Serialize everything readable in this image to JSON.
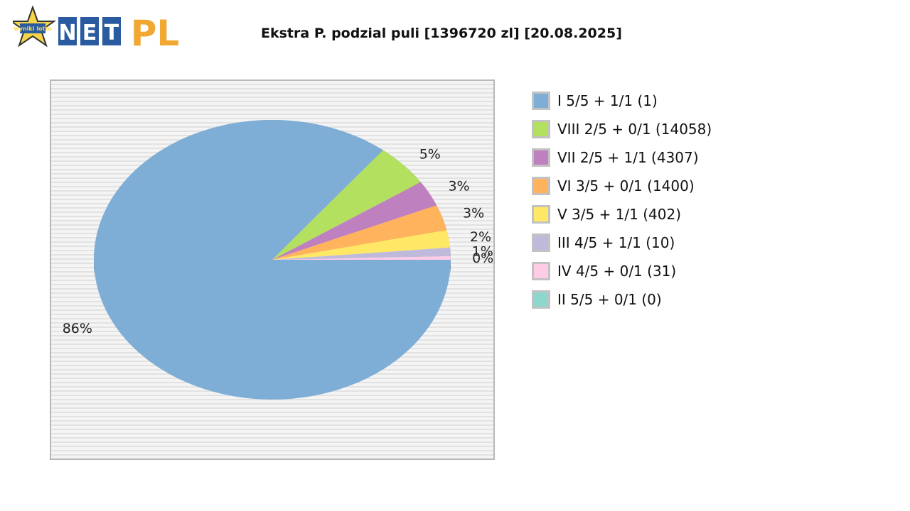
{
  "logo": {
    "text": "NETPL",
    "star_text": "wyniki lotto"
  },
  "chart_data": {
    "type": "pie",
    "title": "Ekstra P. podzial puli [1396720 zl] [20.08.2025]",
    "slices": [
      {
        "name": "I 5/5 + 1/1 (1)",
        "value": 86,
        "label": "86%",
        "color": "#7eaed6"
      },
      {
        "name": "VIII 2/5 + 0/1 (14058)",
        "value": 5,
        "label": "5%",
        "color": "#b3e05f"
      },
      {
        "name": "VII 2/5 + 1/1 (4307)",
        "value": 3,
        "label": "3%",
        "color": "#bf80bf"
      },
      {
        "name": "VI 3/5 + 0/1 (1400)",
        "value": 3,
        "label": "3%",
        "color": "#ffb35c"
      },
      {
        "name": "V 3/5 + 1/1 (402)",
        "value": 2,
        "label": "2%",
        "color": "#ffe866"
      },
      {
        "name": "III 4/5 + 1/1 (10)",
        "value": 1,
        "label": "1%",
        "color": "#bfbadc"
      },
      {
        "name": "IV 4/5 + 0/1 (31)",
        "value": 0.4,
        "label": "0%",
        "color": "#ffcce6"
      },
      {
        "name": "II 5/5 + 0/1 (0)",
        "value": 0,
        "label": "",
        "color": "#8fd6cc"
      }
    ],
    "legend_position": "right"
  }
}
